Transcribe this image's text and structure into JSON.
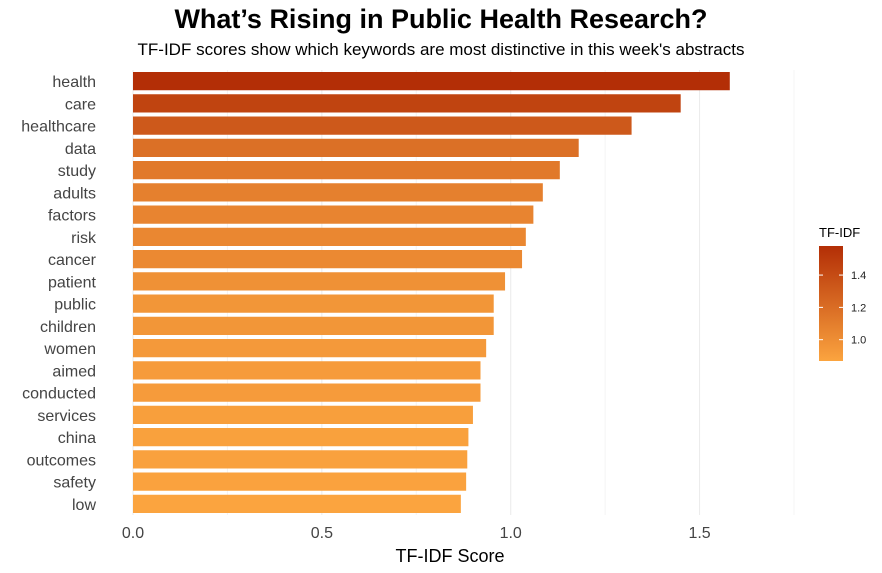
{
  "chart_data": {
    "type": "bar",
    "orientation": "horizontal",
    "title": "What’s Rising in Public Health Research?",
    "subtitle": "TF-IDF scores show which keywords are most distinctive in this week's abstracts",
    "xlabel": "TF-IDF Score",
    "ylabel": "",
    "xlim": [
      0,
      1.75
    ],
    "x_ticks": [
      0,
      0.5,
      1,
      1.5
    ],
    "x_tick_labels": [
      "0.0",
      "0.5",
      "1.0",
      "1.5"
    ],
    "grid": true,
    "categories": [
      "health",
      "care",
      "healthcare",
      "data",
      "study",
      "adults",
      "factors",
      "risk",
      "cancer",
      "patient",
      "public",
      "children",
      "women",
      "aimed",
      "conducted",
      "services",
      "china",
      "outcomes",
      "safety",
      "low"
    ],
    "values": [
      1.58,
      1.45,
      1.32,
      1.18,
      1.13,
      1.085,
      1.06,
      1.04,
      1.03,
      0.985,
      0.955,
      0.955,
      0.935,
      0.92,
      0.92,
      0.9,
      0.888,
      0.885,
      0.882,
      0.868
    ],
    "legend": {
      "title": "TF-IDF",
      "position": "right",
      "range": [
        0.868,
        1.58
      ],
      "ticks": [
        1.0,
        1.2,
        1.4
      ],
      "tick_labels": [
        "1.0",
        "1.2",
        "1.4"
      ],
      "color_low": "#FBA43F",
      "color_high": "#B32E06"
    }
  }
}
